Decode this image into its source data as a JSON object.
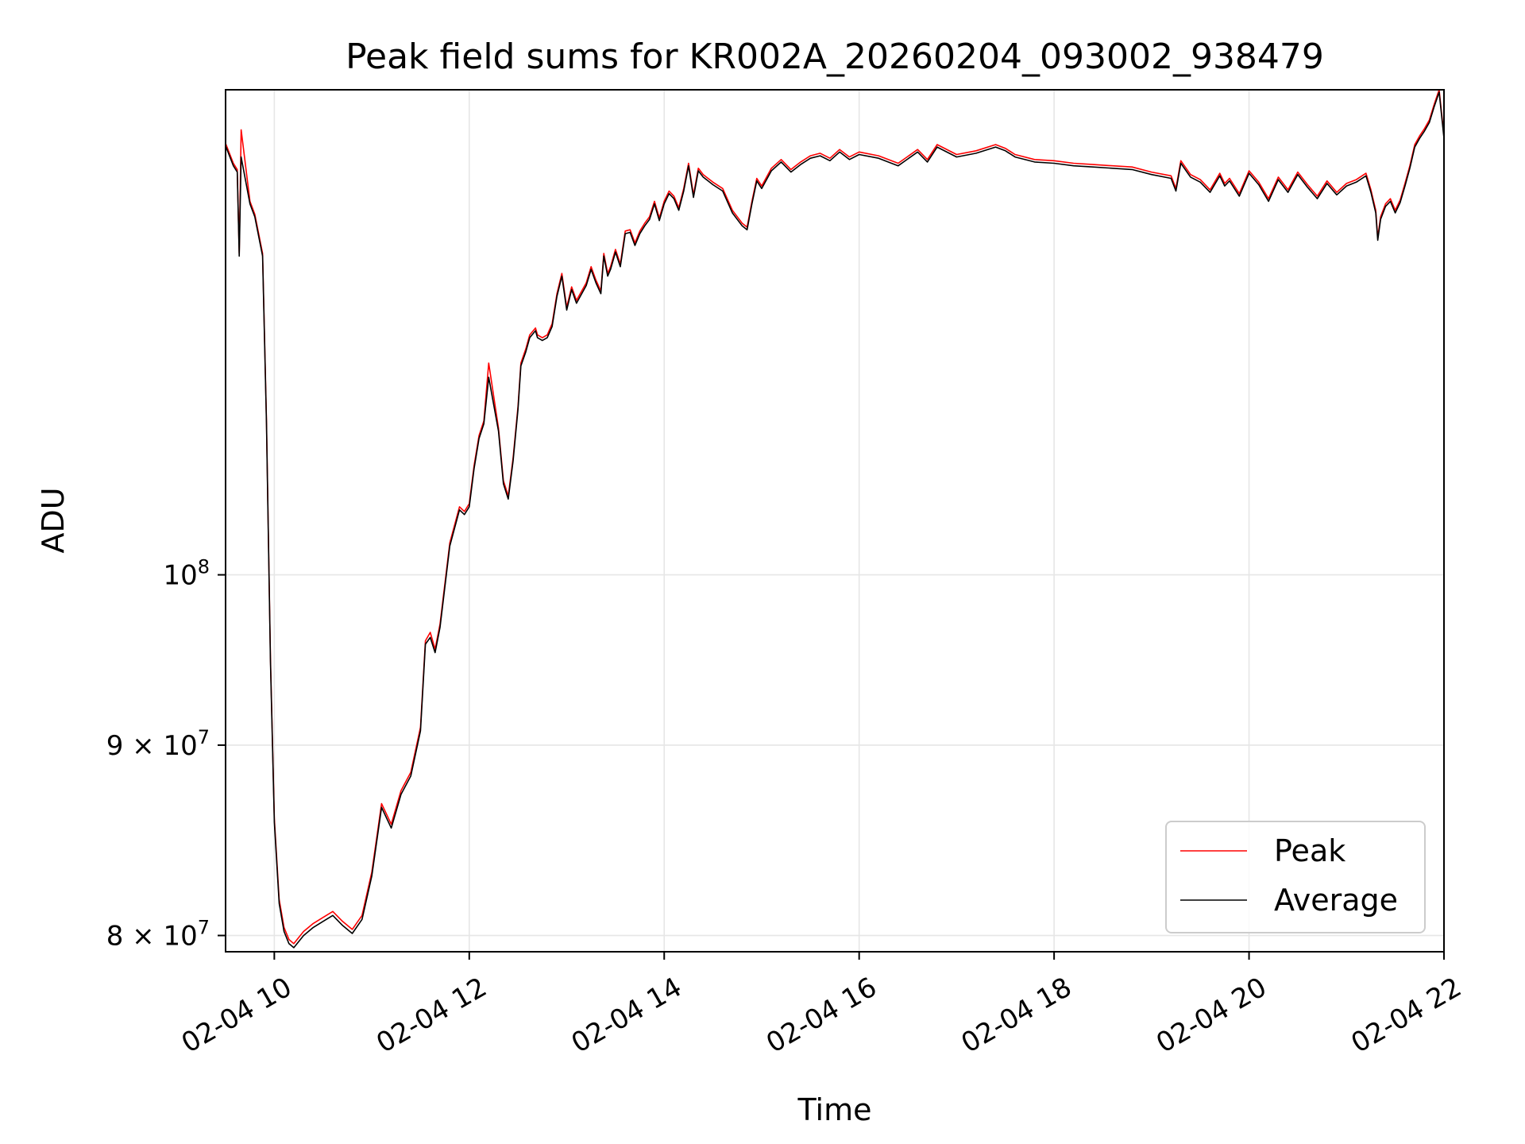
{
  "chart_data": {
    "type": "line",
    "title": "Peak field sums for KR002A_20260204_093002_938479",
    "xlabel": "Time",
    "ylabel": "ADU",
    "x_unit": "hours on 2026-02-04",
    "xlim": [
      9.5,
      22.0
    ],
    "ylim": [
      79200000,
      135000000
    ],
    "yscale": "log",
    "grid": true,
    "legend_position": "lower right",
    "x_ticks": [
      {
        "value": 10,
        "label": "02-04 10"
      },
      {
        "value": 12,
        "label": "02-04 12"
      },
      {
        "value": 14,
        "label": "02-04 14"
      },
      {
        "value": 16,
        "label": "02-04 16"
      },
      {
        "value": 18,
        "label": "02-04 18"
      },
      {
        "value": 20,
        "label": "02-04 20"
      },
      {
        "value": 22,
        "label": "02-04 22"
      }
    ],
    "y_ticks": [
      {
        "value": 80000000,
        "mantissa": "8",
        "base": "10",
        "exp": "7"
      },
      {
        "value": 90000000,
        "mantissa": "9",
        "base": "10",
        "exp": "7"
      },
      {
        "value": 100000000,
        "mantissa": "",
        "base": "10",
        "exp": "8"
      }
    ],
    "x": [
      9.5,
      9.58,
      9.62,
      9.64,
      9.66,
      9.75,
      9.8,
      9.88,
      9.92,
      9.96,
      10.0,
      10.05,
      10.1,
      10.15,
      10.2,
      10.3,
      10.4,
      10.5,
      10.6,
      10.7,
      10.8,
      10.9,
      11.0,
      11.1,
      11.2,
      11.3,
      11.4,
      11.5,
      11.55,
      11.6,
      11.65,
      11.7,
      11.8,
      11.9,
      11.95,
      12.0,
      12.05,
      12.1,
      12.15,
      12.2,
      12.3,
      12.35,
      12.4,
      12.45,
      12.5,
      12.53,
      12.58,
      12.62,
      12.68,
      12.7,
      12.75,
      12.8,
      12.85,
      12.9,
      12.95,
      13.0,
      13.05,
      13.1,
      13.2,
      13.25,
      13.3,
      13.35,
      13.38,
      13.42,
      13.45,
      13.5,
      13.55,
      13.6,
      13.65,
      13.7,
      13.75,
      13.8,
      13.85,
      13.9,
      13.95,
      14.0,
      14.05,
      14.1,
      14.15,
      14.2,
      14.25,
      14.3,
      14.35,
      14.4,
      14.5,
      14.6,
      14.7,
      14.8,
      14.85,
      14.9,
      14.95,
      15.0,
      15.1,
      15.2,
      15.3,
      15.4,
      15.5,
      15.6,
      15.7,
      15.8,
      15.9,
      16.0,
      16.2,
      16.4,
      16.6,
      16.7,
      16.8,
      17.0,
      17.2,
      17.4,
      17.5,
      17.6,
      17.8,
      18.0,
      18.2,
      18.4,
      18.6,
      18.8,
      19.0,
      19.2,
      19.25,
      19.3,
      19.4,
      19.5,
      19.6,
      19.7,
      19.75,
      19.8,
      19.9,
      20.0,
      20.1,
      20.2,
      20.3,
      20.4,
      20.5,
      20.6,
      20.7,
      20.8,
      20.9,
      21.0,
      21.1,
      21.2,
      21.25,
      21.3,
      21.32,
      21.35,
      21.4,
      21.45,
      21.5,
      21.55,
      21.6,
      21.65,
      21.7,
      21.75,
      21.8,
      21.85,
      21.9,
      21.95,
      22.0
    ],
    "series": [
      {
        "name": "Peak",
        "color": "#ff0000",
        "values": [
          130600000,
          129000000,
          128500000,
          122000000,
          131700000,
          126000000,
          125000000,
          122000000,
          110000000,
          95000000,
          86000000,
          81800000,
          80400000,
          79800000,
          79600000,
          80200000,
          80600000,
          80900000,
          81200000,
          80700000,
          80300000,
          81000000,
          83200000,
          86800000,
          85700000,
          87500000,
          88500000,
          91000000,
          96000000,
          96500000,
          95500000,
          97000000,
          102000000,
          104300000,
          104000000,
          104500000,
          107000000,
          109000000,
          110000000,
          114000000,
          109500000,
          106000000,
          105000000,
          107500000,
          111000000,
          114000000,
          115000000,
          116000000,
          116500000,
          116000000,
          115800000,
          116000000,
          116800000,
          119000000,
          120500000,
          118000000,
          119500000,
          118500000,
          119800000,
          121000000,
          120000000,
          119200000,
          122000000,
          120500000,
          121000000,
          122300000,
          121200000,
          123700000,
          123800000,
          122800000,
          123700000,
          124300000,
          124800000,
          126000000,
          124700000,
          126000000,
          126800000,
          126400000,
          125500000,
          127000000,
          129000000,
          126500000,
          128600000,
          128100000,
          127500000,
          127000000,
          125300000,
          124300000,
          124000000,
          126000000,
          127800000,
          127200000,
          128600000,
          129300000,
          128500000,
          129100000,
          129600000,
          129800000,
          129400000,
          130100000,
          129500000,
          129900000,
          129600000,
          129000000,
          130100000,
          129300000,
          130500000,
          129700000,
          130000000,
          130500000,
          130200000,
          129700000,
          129300000,
          129200000,
          129000000,
          128900000,
          128800000,
          128700000,
          128300000,
          128000000,
          127000000,
          129200000,
          128100000,
          127700000,
          126900000,
          128200000,
          127400000,
          127800000,
          126600000,
          128400000,
          127500000,
          126200000,
          127900000,
          126900000,
          128300000,
          127300000,
          126400000,
          127600000,
          126700000,
          127400000,
          127700000,
          128200000,
          126900000,
          125300000,
          123200000,
          124800000,
          125800000,
          126200000,
          125300000,
          126100000,
          127400000,
          128800000,
          130500000,
          131200000,
          131800000,
          132500000,
          133800000,
          135000000,
          131200000
        ]
      },
      {
        "name": "Average",
        "color": "#000000",
        "values": [
          130400000,
          128800000,
          128300000,
          121800000,
          129500000,
          125800000,
          124800000,
          121800000,
          109800000,
          94800000,
          85800000,
          81600000,
          80200000,
          79600000,
          79400000,
          80000000,
          80400000,
          80700000,
          81000000,
          80500000,
          80100000,
          80800000,
          83000000,
          86600000,
          85500000,
          87300000,
          88300000,
          90800000,
          95800000,
          96200000,
          95300000,
          96800000,
          101800000,
          104100000,
          103800000,
          104300000,
          106800000,
          108800000,
          109800000,
          113000000,
          109300000,
          105800000,
          104800000,
          107300000,
          110800000,
          113800000,
          114800000,
          115800000,
          116300000,
          115800000,
          115600000,
          115800000,
          116600000,
          118800000,
          120300000,
          117800000,
          119300000,
          118300000,
          119600000,
          120800000,
          119800000,
          119000000,
          121800000,
          120300000,
          120800000,
          122100000,
          121000000,
          123500000,
          123600000,
          122600000,
          123500000,
          124100000,
          124600000,
          125800000,
          124500000,
          125800000,
          126600000,
          126200000,
          125300000,
          126800000,
          128800000,
          126300000,
          128400000,
          127900000,
          127300000,
          126800000,
          125100000,
          124100000,
          123800000,
          125800000,
          127600000,
          127000000,
          128400000,
          129100000,
          128300000,
          128900000,
          129400000,
          129600000,
          129200000,
          129900000,
          129300000,
          129700000,
          129400000,
          128800000,
          129900000,
          129100000,
          130300000,
          129500000,
          129800000,
          130300000,
          130000000,
          129500000,
          129100000,
          129000000,
          128800000,
          128700000,
          128600000,
          128500000,
          128100000,
          127800000,
          126800000,
          129000000,
          127900000,
          127500000,
          126700000,
          128000000,
          127200000,
          127600000,
          126400000,
          128200000,
          127300000,
          126000000,
          127700000,
          126700000,
          128100000,
          127100000,
          126200000,
          127400000,
          126500000,
          127200000,
          127500000,
          128000000,
          126700000,
          125100000,
          123000000,
          124600000,
          125600000,
          126000000,
          125100000,
          125900000,
          127200000,
          128600000,
          130300000,
          131000000,
          131600000,
          132300000,
          133600000,
          134800000,
          131000000
        ]
      }
    ]
  }
}
